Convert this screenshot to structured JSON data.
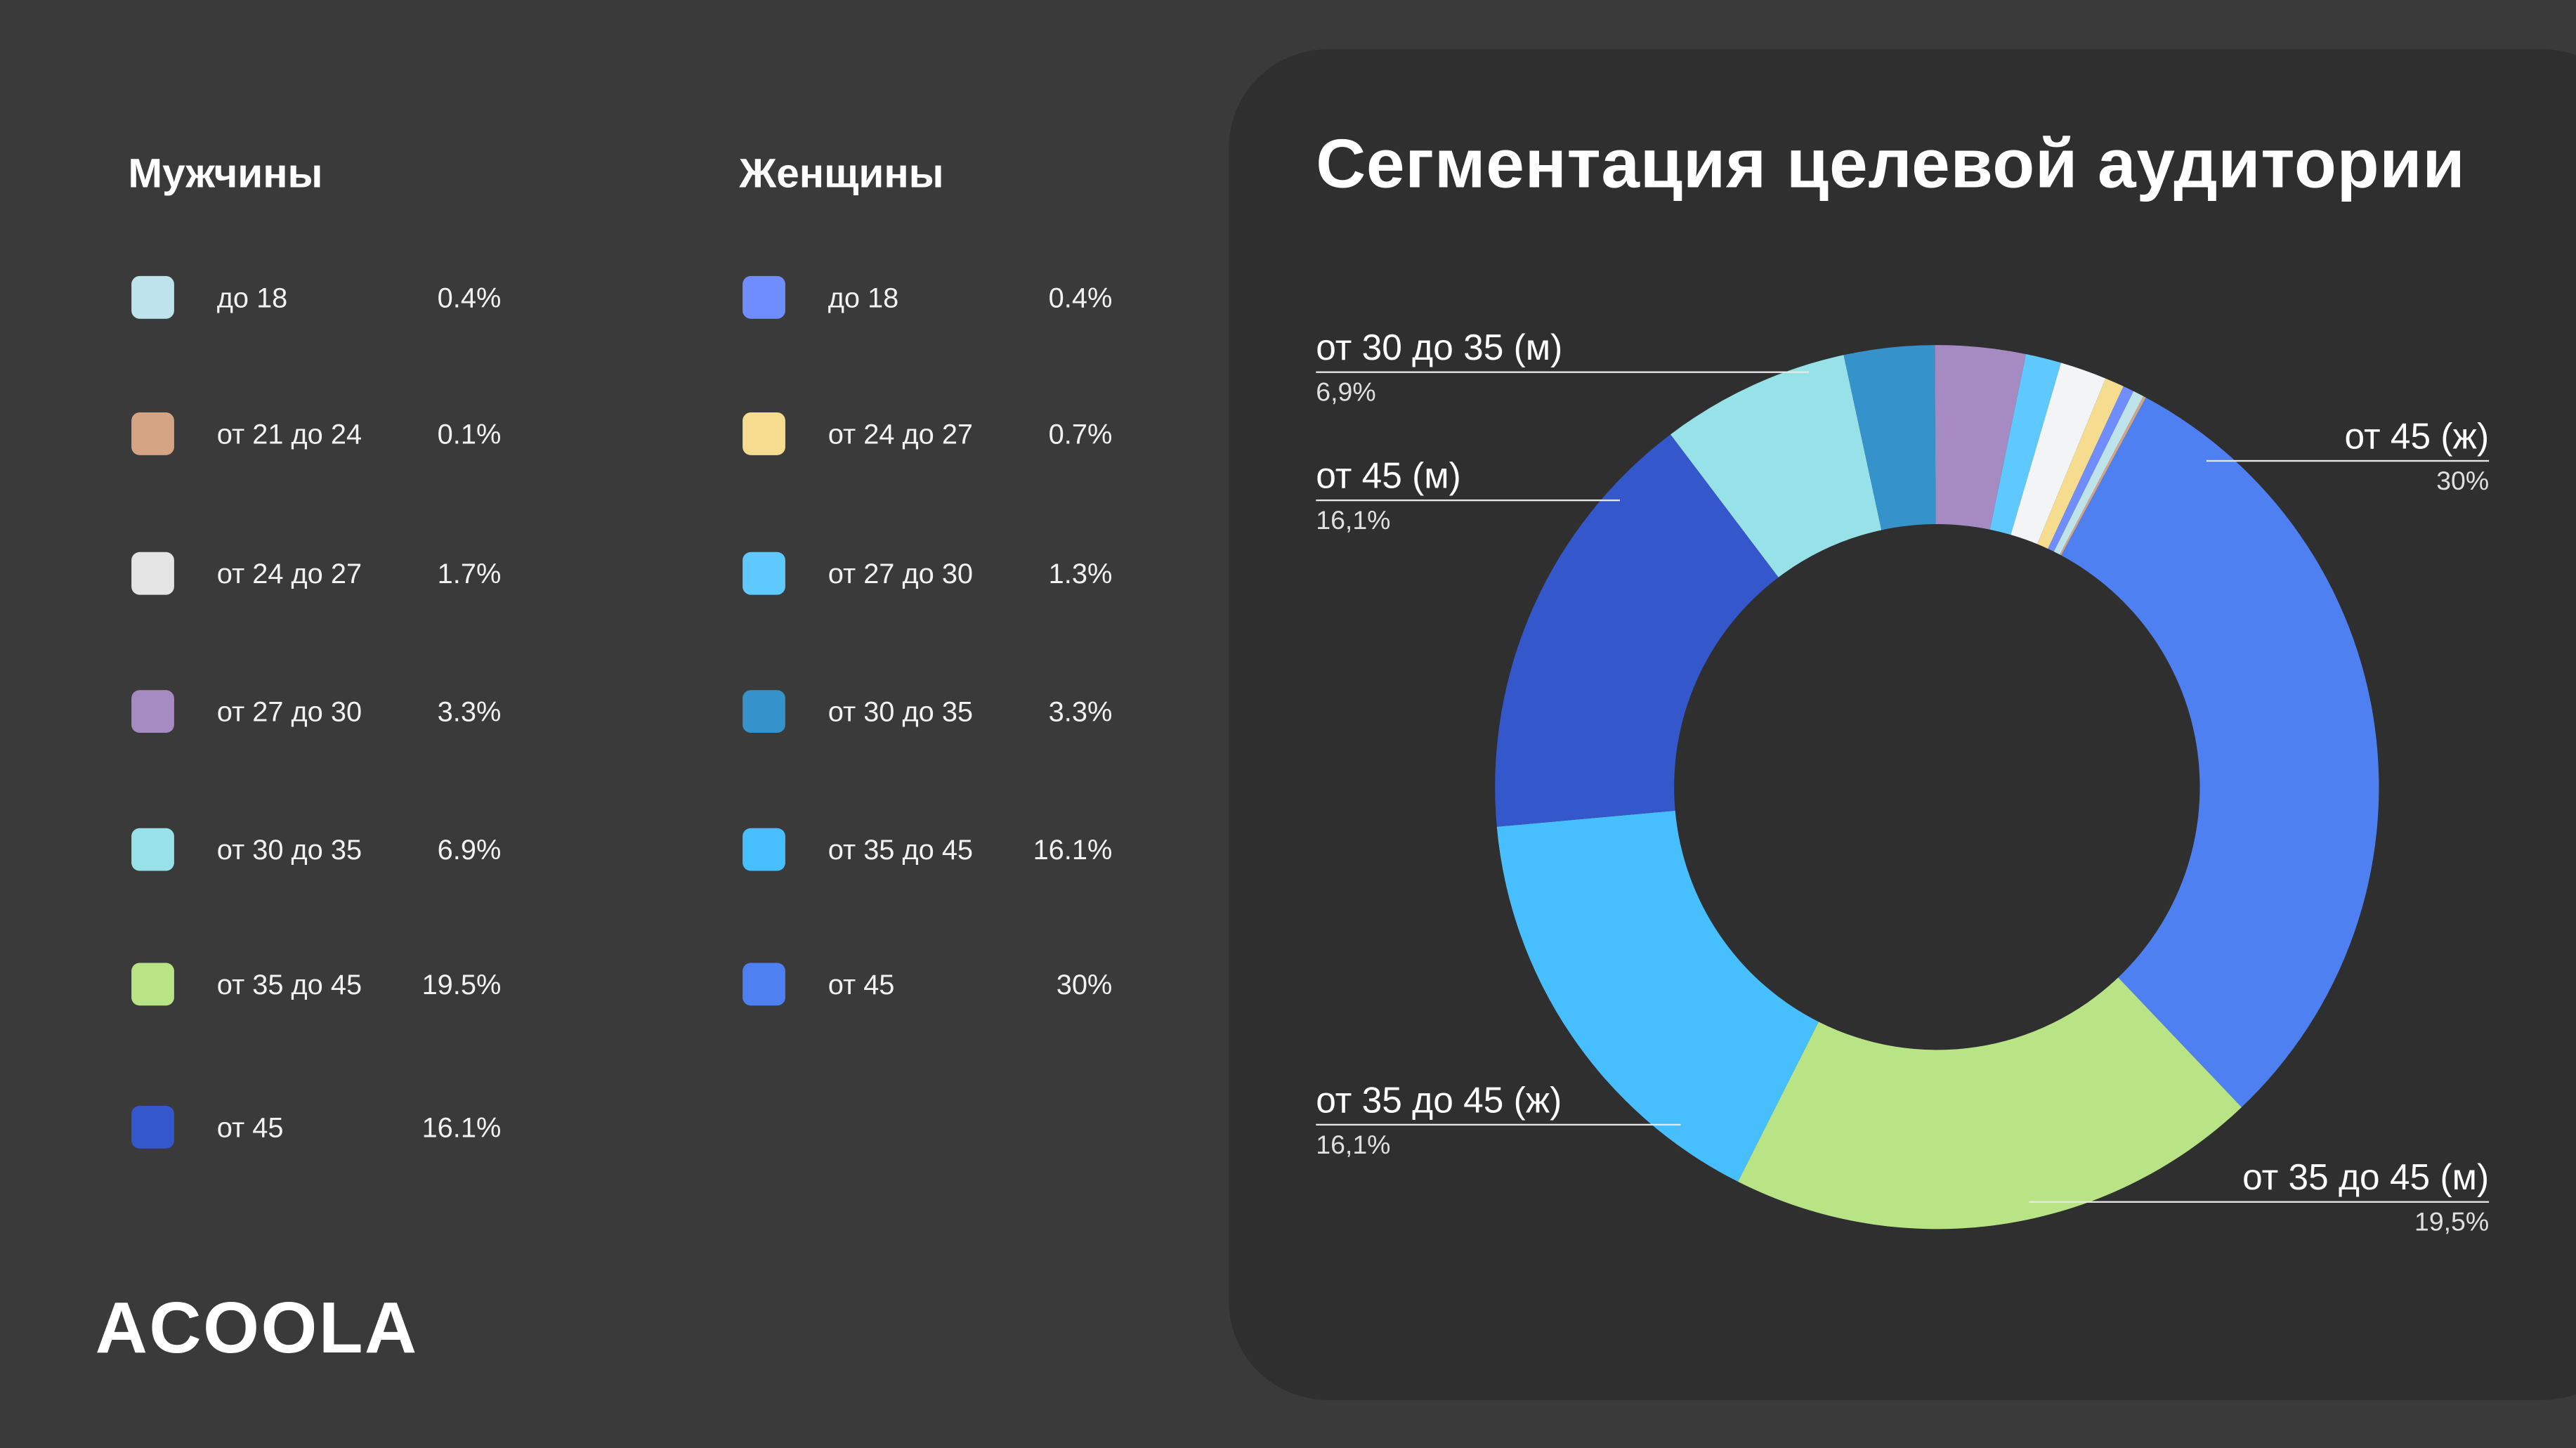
{
  "title": "Сегментация целевой аудитории",
  "logo": "ACOOLA",
  "men": {
    "heading": "Мужчины",
    "items": [
      {
        "label": "до 18",
        "value": "0.4%",
        "color": "#bfe3ea"
      },
      {
        "label": "от 21 до 24",
        "value": "0.1%",
        "color": "#d4a485"
      },
      {
        "label": "от 24 до 27",
        "value": "1.7%",
        "color": "#e4e4e4"
      },
      {
        "label": "от 27 до 30",
        "value": "3.3%",
        "color": "#a68bc2"
      },
      {
        "label": "от 30 до 35",
        "value": "6.9%",
        "color": "#97e2e8"
      },
      {
        "label": "от 35 до 45",
        "value": "19.5%",
        "color": "#b8e486"
      },
      {
        "label": "от 45",
        "value": "16.1%",
        "color": "#3457cc"
      }
    ]
  },
  "women": {
    "heading": "Женщины",
    "items": [
      {
        "label": "до 18",
        "value": "0.4%",
        "color": "#6f8dff"
      },
      {
        "label": "от 24 до 27",
        "value": "0.7%",
        "color": "#f5dc8f"
      },
      {
        "label": "от 27 до 30",
        "value": "1.3%",
        "color": "#5ec8ff"
      },
      {
        "label": "от 30 до 35",
        "value": "3.3%",
        "color": "#3592cb"
      },
      {
        "label": "от 35 до 45",
        "value": "16.1%",
        "color": "#47bfff"
      },
      {
        "label": "от 45",
        "value": "30%",
        "color": "#4f80f2"
      }
    ]
  },
  "chart_data": {
    "type": "pie",
    "variant": "donut",
    "title": "Сегментация целевой аудитории",
    "start": "top, clockwise",
    "slices": [
      {
        "name": "от 27 до 30 (м)",
        "value": 3.3,
        "color": "#a68bc2"
      },
      {
        "name": "от 27 до 30 (ж)",
        "value": 1.3,
        "color": "#5ec8ff"
      },
      {
        "name": "от 24 до 27 (м)",
        "value": 1.7,
        "color": "#f3f4f6"
      },
      {
        "name": "от 24 до 27 (ж)",
        "value": 0.7,
        "color": "#f5dc8f"
      },
      {
        "name": "до 18 (ж)",
        "value": 0.4,
        "color": "#6f8dff"
      },
      {
        "name": "до 18 (м)",
        "value": 0.4,
        "color": "#bfe3ea"
      },
      {
        "name": "от 21 до 24 (м)",
        "value": 0.1,
        "color": "#d4a485"
      },
      {
        "name": "от 45 (ж)",
        "value": 30,
        "color": "#4f80f2"
      },
      {
        "name": "от 35 до 45 (м)",
        "value": 19.5,
        "color": "#b8e486"
      },
      {
        "name": "от 35 до 45 (ж)",
        "value": 16.1,
        "color": "#47bfff"
      },
      {
        "name": "от 45 (м)",
        "value": 16.1,
        "color": "#3457cc"
      },
      {
        "name": "от 30 до 35 (м)",
        "value": 6.9,
        "color": "#97e2e8"
      },
      {
        "name": "от 30 до 35 (ж)",
        "value": 3.3,
        "color": "#3592cb"
      }
    ],
    "callouts": [
      {
        "name": "от 30 до 35 (м)",
        "value": "6,9%"
      },
      {
        "name": "от 45 (м)",
        "value": "16,1%"
      },
      {
        "name": "от 45 (ж)",
        "value": "30%"
      },
      {
        "name": "от 35 до 45 (ж)",
        "value": "16,1%"
      },
      {
        "name": "от 35 до 45 (м)",
        "value": "19,5%"
      }
    ]
  }
}
